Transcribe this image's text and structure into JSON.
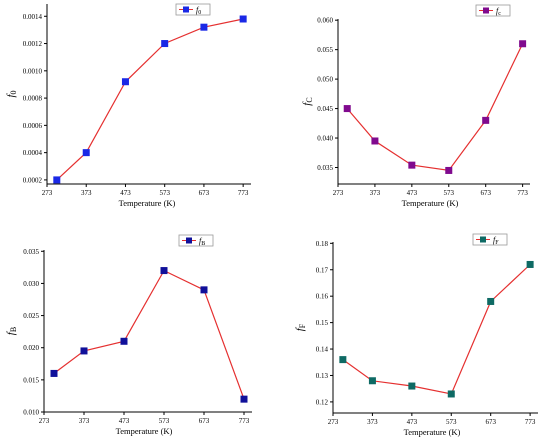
{
  "colors": {
    "line": "#e53030"
  },
  "chart_data": [
    {
      "type": "line",
      "ylabel_main": "f",
      "ylabel_sub": "0",
      "xlabel": "Temperature (K)",
      "legend_main": "f",
      "legend_sub": "0",
      "legend_position": "top-right",
      "marker_color": "#1a28e6",
      "xticks": [
        "273",
        "373",
        "473",
        "573",
        "673",
        "773"
      ],
      "yticks": [
        "0.0002",
        "0.0004",
        "0.0006",
        "0.0008",
        "0.0010",
        "0.0012",
        "0.0014"
      ],
      "xlim": [
        273,
        793
      ],
      "ylim": [
        0.00017,
        0.00149
      ],
      "x": [
        298,
        373,
        473,
        573,
        673,
        773
      ],
      "values": [
        0.0002,
        0.0004,
        0.00092,
        0.0012,
        0.00132,
        0.00138
      ],
      "grid": false
    },
    {
      "type": "line",
      "ylabel_main": "f",
      "ylabel_sub": "C",
      "xlabel": "Temperature (K)",
      "legend_main": "f",
      "legend_sub": "c",
      "legend_position": "top-right",
      "marker_color": "#800a8e",
      "xticks": [
        "273",
        "373",
        "473",
        "573",
        "673",
        "773"
      ],
      "yticks": [
        "0.035",
        "0.040",
        "0.045",
        "0.050",
        "0.055",
        "0.060"
      ],
      "xlim": [
        273,
        793
      ],
      "ylim": [
        0.0322,
        0.0602
      ],
      "x": [
        298,
        373,
        473,
        573,
        673,
        773
      ],
      "values": [
        0.045,
        0.0395,
        0.0354,
        0.0345,
        0.043,
        0.056
      ],
      "grid": false
    },
    {
      "type": "line",
      "ylabel_main": "f",
      "ylabel_sub": "B",
      "xlabel": "Temperature (K)",
      "legend_main": "f",
      "legend_sub": "B",
      "legend_position": "top-right",
      "marker_color": "#10109a",
      "xticks": [
        "273",
        "373",
        "473",
        "573",
        "673",
        "773"
      ],
      "yticks": [
        "0.010",
        "0.015",
        "0.020",
        "0.025",
        "0.030",
        "0.035"
      ],
      "xlim": [
        273,
        793
      ],
      "ylim": [
        0.01,
        0.0352
      ],
      "x": [
        298,
        373,
        473,
        573,
        673,
        773
      ],
      "values": [
        0.016,
        0.0195,
        0.021,
        0.032,
        0.029,
        0.012
      ],
      "grid": false
    },
    {
      "type": "line",
      "ylabel_main": "f",
      "ylabel_sub": "F",
      "xlabel": "Temperature (K)",
      "legend_main": "f",
      "legend_sub": "F",
      "legend_position": "top-right",
      "marker_color": "#0e6a64",
      "xticks": [
        "273",
        "373",
        "473",
        "573",
        "673",
        "773"
      ],
      "yticks": [
        "0.12",
        "0.13",
        "0.14",
        "0.15",
        "0.16",
        "0.17",
        "0.18"
      ],
      "xlim": [
        273,
        793
      ],
      "ylim": [
        0.1158,
        0.1805
      ],
      "x": [
        298,
        373,
        473,
        573,
        673,
        773
      ],
      "values": [
        0.136,
        0.128,
        0.126,
        0.123,
        0.158,
        0.172
      ],
      "grid": false
    }
  ]
}
